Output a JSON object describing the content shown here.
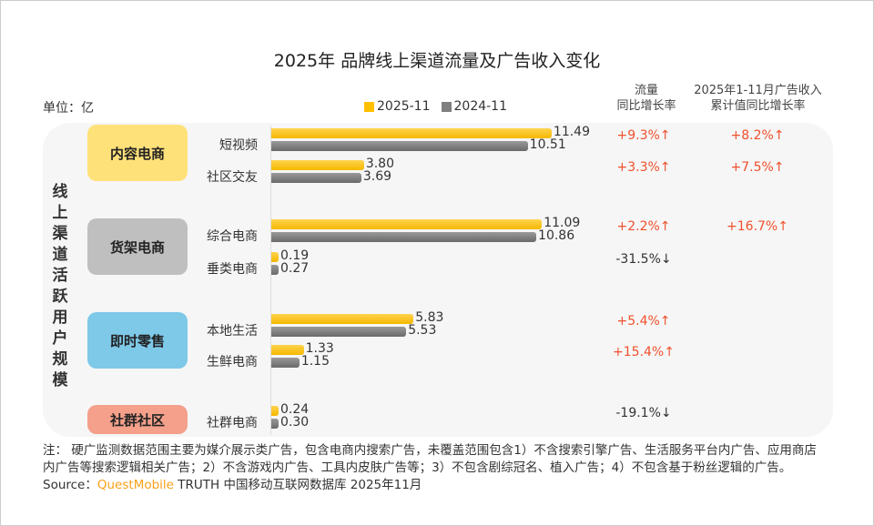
{
  "chart_data": {
    "type": "bar",
    "title": "2025年 品牌线上渠道流量及广告收入变化",
    "unit_label": "单位：亿",
    "ylabel": "线上渠道活跃用户规模",
    "legend": [
      "2025-11",
      "2024-11"
    ],
    "legend_position": "top",
    "colors": {
      "2025-11": "#ffc000",
      "2024-11": "#7f7f7f"
    },
    "col_headers": {
      "growth": "流量\n同比增长率",
      "ad": "2025年1-11月广告收入\n累计值同比增长率"
    },
    "groups": [
      {
        "name": "内容电商",
        "color": "#ffe17a",
        "rows": [
          {
            "category": "短视频",
            "v2025": 11.49,
            "v2024": 10.51,
            "label2025": "11.49",
            "label2024": "10.51",
            "growth": "+9.3%↑",
            "ad": "+8.2%↑"
          },
          {
            "category": "社区交友",
            "v2025": 3.8,
            "v2024": 3.69,
            "label2025": "3.80",
            "label2024": "3.69",
            "growth": "+3.3%↑",
            "ad": "+7.5%↑"
          }
        ]
      },
      {
        "name": "货架电商",
        "color": "#bfbfbf",
        "rows": [
          {
            "category": "综合电商",
            "v2025": 11.09,
            "v2024": 10.86,
            "label2025": "11.09",
            "label2024": "10.86",
            "growth": "+2.2%↑",
            "ad": "+16.7%↑"
          },
          {
            "category": "垂类电商",
            "v2025": 0.19,
            "v2024": 0.27,
            "label2025": "0.19",
            "label2024": "0.27",
            "growth": "-31.5%↓",
            "ad": ""
          }
        ]
      },
      {
        "name": "即时零售",
        "color": "#7ec8e8",
        "rows": [
          {
            "category": "本地生活",
            "v2025": 5.83,
            "v2024": 5.53,
            "label2025": "5.83",
            "label2024": "5.53",
            "growth": "+5.4%↑",
            "ad": ""
          },
          {
            "category": "生鲜电商",
            "v2025": 1.33,
            "v2024": 1.15,
            "label2025": "1.33",
            "label2024": "1.15",
            "growth": "+15.4%↑",
            "ad": ""
          }
        ]
      },
      {
        "name": "社群社区",
        "color": "#f4a08a",
        "rows": [
          {
            "category": "社群电商",
            "v2025": 0.24,
            "v2024": 0.3,
            "label2025": "0.24",
            "label2024": "0.30",
            "growth": "-19.1%↓",
            "ad": ""
          }
        ]
      }
    ]
  },
  "notes": {
    "text": "注：  硬广监测数据范围主要为媒介展示类广告，包含电商内搜索广告，未覆盖范围包含1）不含搜索引擎广告、生活服务平台内广告、应用商店内广告等搜索逻辑相关广告；2）不含游戏内广告、工具内皮肤广告等；3）不包含剧综冠名、植入广告；4）不包含基于粉丝逻辑的广告。",
    "source_prefix": "Source：",
    "source_brand": "QuestMobile",
    "source_rest": " TRUTH 中国移动互联网数据库 2025年11月"
  }
}
